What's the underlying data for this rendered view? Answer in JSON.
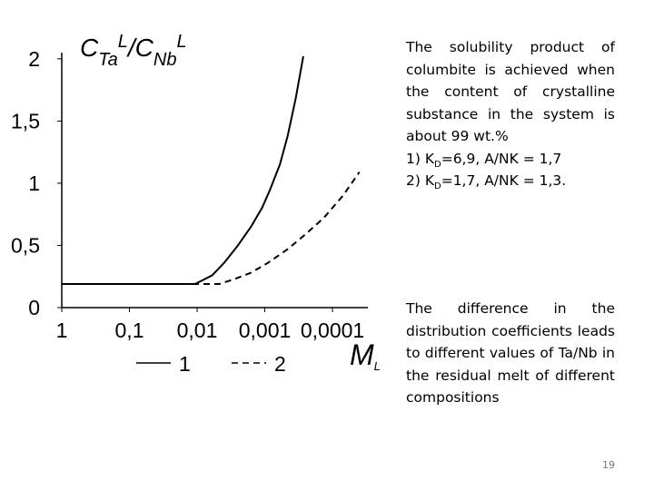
{
  "chart_data": {
    "type": "line",
    "y_label_parts": [
      "C",
      "Ta",
      "L",
      "/C",
      "Nb",
      "L"
    ],
    "x_label_parts": [
      "M",
      "L"
    ],
    "xscale": "log",
    "xlim": [
      1,
      3e-05
    ],
    "xticks": [
      1,
      {
        "value": 0.1,
        "label": "0,1"
      },
      {
        "value": 0.01,
        "label": "0,01"
      },
      {
        "value": 0.001,
        "label": "0,001"
      },
      {
        "value": 0.0001,
        "label": "0,0001"
      }
    ],
    "ylim": [
      0,
      2.05
    ],
    "yticks": [
      0,
      {
        "value": 0.5,
        "label": "0,5"
      },
      1,
      {
        "value": 1.5,
        "label": "1,5"
      },
      2
    ],
    "series": [
      {
        "name": "1",
        "color": "#000000",
        "dash": false,
        "x": [
          1,
          0.0107,
          0.006,
          0.004,
          0.0025,
          0.0016,
          0.0011,
          0.00085,
          0.0006,
          0.00046,
          0.00035,
          0.00027
        ],
        "values": [
          0.19,
          0.19,
          0.26,
          0.36,
          0.5,
          0.65,
          0.8,
          0.94,
          1.15,
          1.38,
          1.68,
          2.02
        ]
      },
      {
        "name": "2",
        "color": "#000000",
        "dash": true,
        "x": [
          1,
          0.0047,
          0.0028,
          0.0016,
          0.0009,
          0.00046,
          0.00025,
          0.000135,
          7e-05,
          4e-05
        ],
        "values": [
          0.19,
          0.19,
          0.23,
          0.28,
          0.36,
          0.47,
          0.59,
          0.72,
          0.9,
          1.09
        ]
      }
    ]
  },
  "text": {
    "p1": "The solubility product of columbite is achieved when the content of crystalline substance in the system is about 99 wt.%",
    "list": [
      [
        "1) K",
        "D",
        "=6,9, A/NK = 1,7"
      ],
      [
        "2) K",
        "D",
        "=1,7, A/NK = 1,3."
      ]
    ],
    "p2": "The difference in the distribution coefficients leads to different values of Ta/Nb in the residual melt of different compositions",
    "page_number": "19"
  }
}
